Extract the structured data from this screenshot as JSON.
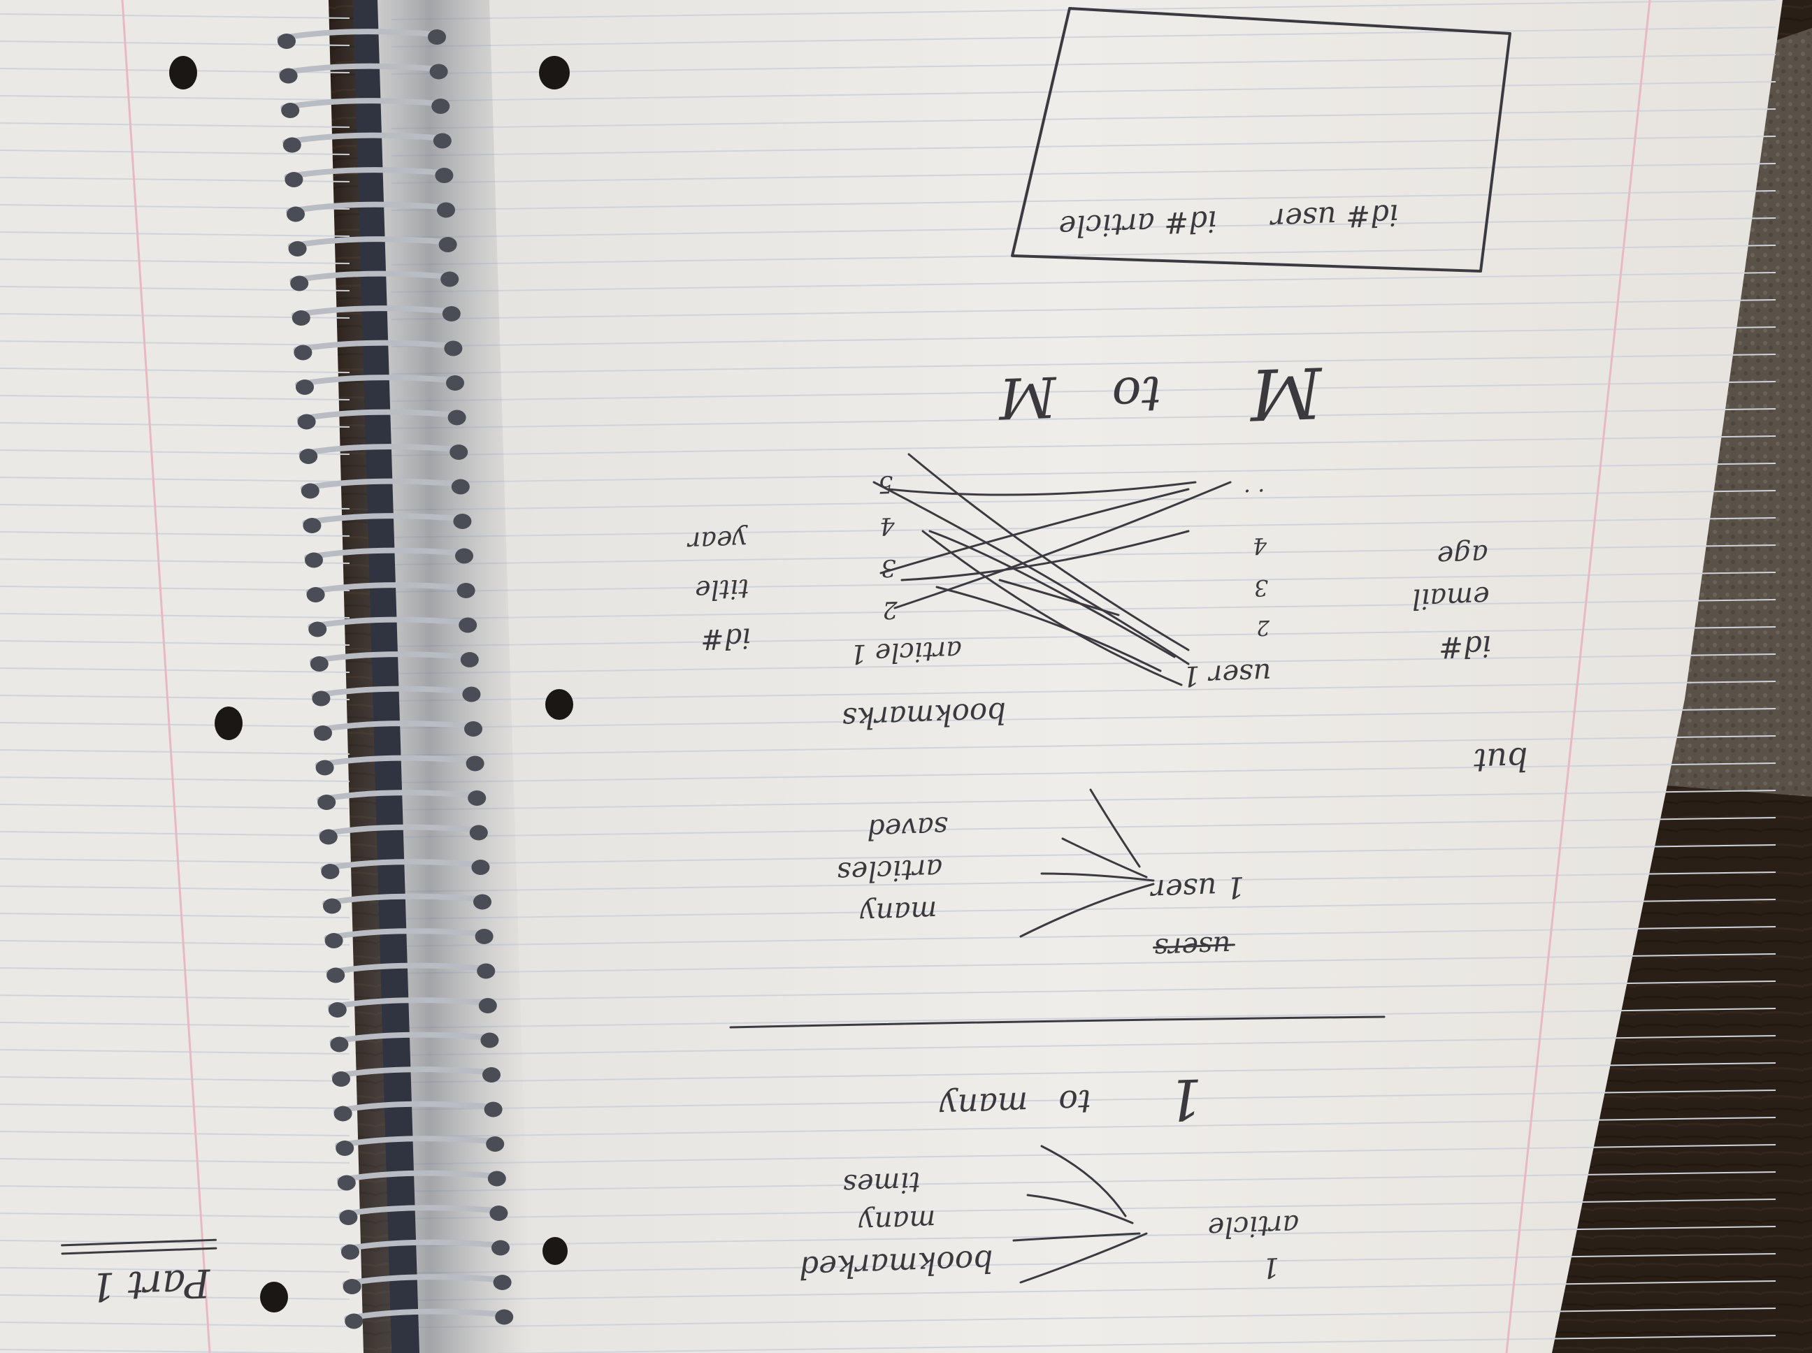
{
  "colors": {
    "paper": "#efedea",
    "paper_shadow": "#d9d6d1",
    "rule_line": "#cfd3dc",
    "margin_line": "#e8b9c2",
    "ink": "#3a3a40",
    "spiral": "#b9bcc2",
    "spiral_dark": "#4a4d55",
    "background_wood": "#2a1f17",
    "background_carpet": "#5a5148"
  },
  "notes": {
    "corner_label": "Part 1",
    "table_box": {
      "col1": "id# user",
      "col2": "id# article"
    },
    "m_to_m": {
      "left": "M",
      "mid": "to",
      "right": "M"
    },
    "fields_left": {
      "f1": "id#",
      "f2": "email",
      "f3": "age"
    },
    "but_label": "but",
    "users_list": {
      "label": "user 1",
      "n2": "2",
      "n3": "3",
      "n4": "4",
      "dots": ". ."
    },
    "bookmarks": {
      "label": "bookmarks",
      "articles": "article 1",
      "n2": "2",
      "n3": "3",
      "n4": "4",
      "n5": "5"
    },
    "fields_right": {
      "f1": "id#",
      "f2": "title",
      "f3": "year"
    },
    "user_many": {
      "struck": "users",
      "one_user": "1 user",
      "many": "many",
      "articles": "articles",
      "saved": "saved"
    },
    "one_to_many": {
      "one": "1",
      "to": "to",
      "many": "many"
    },
    "article_bookmarked": {
      "one": "1",
      "article": "article",
      "bookmarked": "bookmarked",
      "many": "many",
      "times": "times"
    }
  }
}
